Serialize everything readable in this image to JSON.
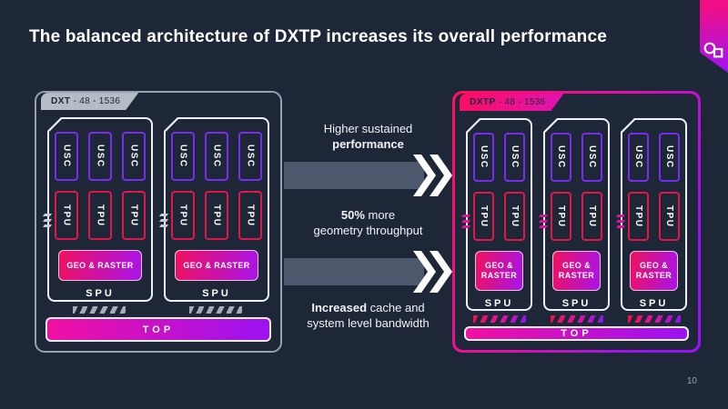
{
  "page": {
    "title": "The balanced architecture of DXTP increases its overall performance",
    "page_number": "10"
  },
  "icons": {
    "brand_logo": "imagination-logo-circle-square"
  },
  "colors": {
    "background": "#1e2737",
    "magenta": "#f210a2",
    "purple": "#9b12f2",
    "red": "#e31549",
    "violet": "#7a2bf0",
    "frame_gray": "#98a0ac",
    "arrow_slate": "#4d586c"
  },
  "left_diagram": {
    "tab_name": "DXT",
    "tab_spec": " - 48 - 1536",
    "spu_count": 2,
    "usc_per_spu": 3,
    "tpu_per_spu": 3,
    "usc_label": "USC",
    "tpu_label": "TPU",
    "geo_label_lines": [
      "GEO & RASTER"
    ],
    "spu_label": "SPU",
    "top_label": "TOP"
  },
  "right_diagram": {
    "tab_name": "DXTP",
    "tab_spec": " - 48 - 1536",
    "spu_count": 3,
    "usc_per_spu": 2,
    "tpu_per_spu": 2,
    "usc_label": "USC",
    "tpu_label": "TPU",
    "geo_label_lines": [
      "GEO &",
      "RASTER"
    ],
    "spu_label": "SPU",
    "top_label": "TOP"
  },
  "annotations": {
    "higher_sustained": {
      "line1": "Higher sustained",
      "line2_bold": "performance"
    },
    "geometry": {
      "bold": "50%",
      "rest": " more",
      "line2": "geometry throughput"
    },
    "bandwidth": {
      "bold": "Increased",
      "rest": " cache and",
      "line2": "system level bandwidth"
    }
  }
}
